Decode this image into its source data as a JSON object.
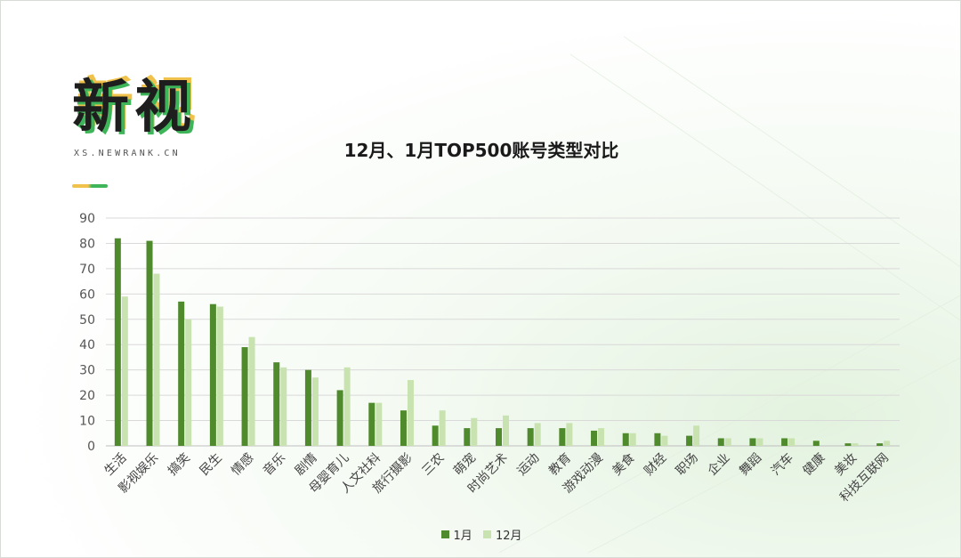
{
  "logo": {
    "title": "新视",
    "subtitle": "XS.NEWRANK.CN"
  },
  "colors": {
    "jan": "#4f8a2c",
    "dec": "#c8e3b0",
    "grid": "#d9d9d9",
    "accent_yellow": "#f0c24b",
    "accent_green": "#3fb55a"
  },
  "chart_data": {
    "type": "bar",
    "title": "12月、1月TOP500账号类型对比",
    "categories": [
      "生活",
      "影视娱乐",
      "搞笑",
      "民生",
      "情感",
      "音乐",
      "剧情",
      "母婴育儿",
      "人文社科",
      "旅行摄影",
      "三农",
      "萌宠",
      "时尚艺术",
      "运动",
      "教育",
      "游戏动漫",
      "美食",
      "财经",
      "职场",
      "企业",
      "舞蹈",
      "汽车",
      "健康",
      "美妆",
      "科技互联网"
    ],
    "series": [
      {
        "name": "1月",
        "values": [
          82,
          81,
          57,
          56,
          39,
          33,
          30,
          22,
          17,
          14,
          8,
          7,
          7,
          7,
          7,
          6,
          5,
          5,
          4,
          3,
          3,
          3,
          2,
          1,
          1
        ]
      },
      {
        "name": "12月",
        "values": [
          59,
          68,
          50,
          55,
          43,
          31,
          27,
          31,
          17,
          26,
          14,
          11,
          12,
          9,
          9,
          7,
          5,
          4,
          8,
          3,
          3,
          3,
          0,
          1,
          2
        ]
      }
    ],
    "ylim": [
      0,
      90
    ],
    "yticks": [
      0,
      10,
      20,
      30,
      40,
      50,
      60,
      70,
      80,
      90
    ],
    "grid": true,
    "legend_position": "bottom-center"
  }
}
